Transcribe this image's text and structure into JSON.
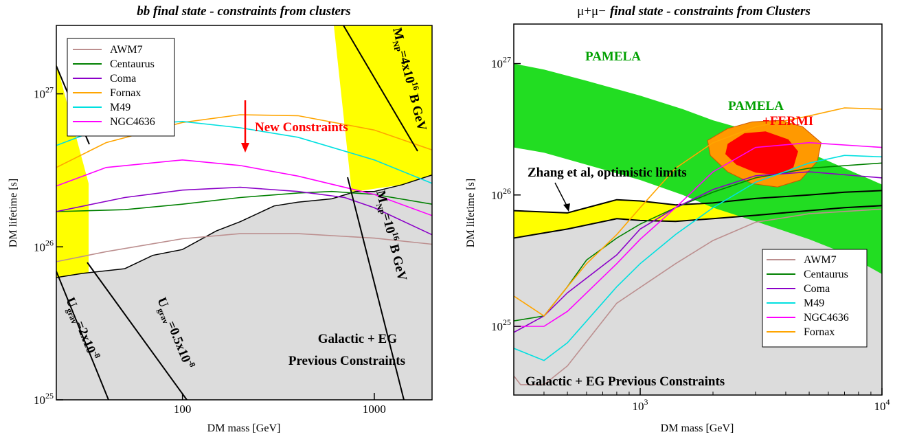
{
  "chart_data": [
    {
      "type": "line",
      "title": "bb final state - constraints from clusters",
      "xlabel": "DM mass [GeV]",
      "ylabel": "DM lifetime [s]",
      "xscale": "log",
      "yscale": "log",
      "xlim": [
        22,
        2000
      ],
      "ylim": [
        1e+25,
        2.8e+27
      ],
      "x_ticks": [
        {
          "v": 100,
          "label": "100"
        },
        {
          "v": 1000,
          "label": "1000"
        }
      ],
      "y_ticks": [
        {
          "v": 1e+25,
          "base": "10",
          "exp": "25"
        },
        {
          "v": 1e+26,
          "base": "10",
          "exp": "26"
        },
        {
          "v": 1e+27,
          "base": "10",
          "exp": "27"
        }
      ],
      "legend": "top-left",
      "grid": false,
      "series": [
        {
          "name": "AWM7",
          "color": "#bc8f8f",
          "x": [
            22,
            40,
            100,
            200,
            400,
            1000,
            2000
          ],
          "y": [
            8e+25,
            9.3e+25,
            1.13e+26,
            1.22e+26,
            1.22e+26,
            1.14e+26,
            1.04e+26
          ]
        },
        {
          "name": "Centaurus",
          "color": "#008000",
          "x": [
            22,
            50,
            100,
            200,
            400,
            600,
            1000,
            2000
          ],
          "y": [
            1.7e+26,
            1.75e+26,
            1.9e+26,
            2.1e+26,
            2.25e+26,
            2.3e+26,
            2.2e+26,
            1.9e+26
          ]
        },
        {
          "name": "Coma",
          "color": "#8b00c8",
          "x": [
            22,
            50,
            100,
            200,
            400,
            700,
            1000,
            2000
          ],
          "y": [
            1.7e+26,
            2.1e+26,
            2.35e+26,
            2.45e+26,
            2.3e+26,
            2.1e+26,
            1.8e+26,
            1.2e+26
          ]
        },
        {
          "name": "Fornax",
          "color": "#ffa500",
          "x": [
            22,
            40,
            100,
            200,
            400,
            1000,
            2000
          ],
          "y": [
            3.3e+26,
            4.8e+26,
            6.5e+26,
            7.3e+26,
            7.2e+26,
            5.8e+26,
            4.3e+26
          ]
        },
        {
          "name": "M49",
          "color": "#00e0e0",
          "x": [
            22,
            40,
            100,
            200,
            400,
            1000,
            2000
          ],
          "y": [
            4.6e+26,
            6.1e+26,
            6.6e+26,
            6e+26,
            5.2e+26,
            3.7e+26,
            2.6e+26
          ]
        },
        {
          "name": "NGC4636",
          "color": "#ff00ff",
          "x": [
            22,
            40,
            100,
            200,
            400,
            1000,
            2000
          ],
          "y": [
            2.5e+26,
            3.3e+26,
            3.7e+26,
            3.4e+26,
            2.9e+26,
            2.2e+26,
            1.6e+26
          ]
        }
      ],
      "previous_constraints_boundary": {
        "x": [
          22,
          30,
          50,
          70,
          100,
          150,
          200,
          300,
          400,
          600,
          800,
          1000,
          1400,
          2000
        ],
        "y": [
          6.3e+25,
          6.7e+25,
          7.2e+25,
          8.8e+25,
          9.6e+25,
          1.27e+26,
          1.46e+26,
          1.85e+26,
          1.96e+26,
          2.06e+26,
          2.3e+26,
          2.3e+26,
          2.55e+26,
          2.95e+26
        ]
      },
      "annotations": {
        "arrow_text": "New Constraints",
        "region_label_1": "Galactic + EG",
        "region_label_2": "Previous Constraints",
        "band_label_1": "M",
        "band_label_1_sub": "NP",
        "band_label_1_rest": "=4x10",
        "band_label_1_sup": "16",
        "band_label_1_end": " B GeV",
        "band_label_2": "M",
        "band_label_2_sub": "NP",
        "band_label_2_rest": "=10",
        "band_label_2_sup": "16",
        "band_label_2_end": " B GeV",
        "ugrav_label_1": "U",
        "ugrav_label_1_sub": "grav",
        "ugrav_label_1_rest": "=2x10",
        "ugrav_label_1_sup": "-8",
        "ugrav_label_2": "U",
        "ugrav_label_2_sub": "grav",
        "ugrav_label_2_rest": "=0.5x10",
        "ugrav_label_2_sup": "-8"
      }
    },
    {
      "type": "line",
      "title_prefix": "μ+μ−",
      "title": "final state - constraints from Clusters",
      "xlabel": "DM mass [GeV]",
      "ylabel": "DM lifetime [s]",
      "xscale": "log",
      "yscale": "log",
      "xlim": [
        300,
        10000
      ],
      "ylim": [
        3e+24,
        2e+27
      ],
      "x_ticks": [
        {
          "v": 1000,
          "base": "10",
          "exp": "3"
        },
        {
          "v": 10000,
          "base": "10",
          "exp": "4"
        }
      ],
      "y_ticks": [
        {
          "v": 1e+25,
          "base": "10",
          "exp": "25"
        },
        {
          "v": 1e+26,
          "base": "10",
          "exp": "26"
        },
        {
          "v": 1e+27,
          "base": "10",
          "exp": "27"
        }
      ],
      "legend": "bottom-right",
      "grid": false,
      "series": [
        {
          "name": "AWM7",
          "color": "#bc8f8f",
          "x": [
            300,
            320,
            400,
            500,
            800,
            1400,
            2000,
            3000,
            5000,
            10000
          ],
          "y": [
            4.2e+24,
            3.6e+24,
            3.6e+24,
            5e+24,
            1.5e+25,
            3e+25,
            4.5e+25,
            6.2e+25,
            7.2e+25,
            7.8e+25
          ]
        },
        {
          "name": "Centaurus",
          "color": "#008000",
          "x": [
            300,
            400,
            500,
            600,
            800,
            1000,
            1400,
            2000,
            3000,
            5000,
            10000
          ],
          "y": [
            1.1e+25,
            1.2e+25,
            2e+25,
            3.2e+25,
            4.7e+25,
            6e+25,
            8e+25,
            1.05e+26,
            1.35e+26,
            1.6e+26,
            1.75e+26
          ]
        },
        {
          "name": "Coma",
          "color": "#8b00c8",
          "x": [
            300,
            400,
            500,
            800,
            1000,
            1400,
            2000,
            3000,
            5000,
            10000
          ],
          "y": [
            9e+24,
            1.2e+25,
            1.8e+25,
            3.5e+25,
            5.5e+25,
            8e+25,
            1.1e+26,
            1.4e+26,
            1.5e+26,
            1.35e+26
          ]
        },
        {
          "name": "M49",
          "color": "#00e0e0",
          "x": [
            300,
            400,
            500,
            800,
            1000,
            1400,
            2000,
            3000,
            5000,
            7000,
            10000
          ],
          "y": [
            6.8e+24,
            5.5e+24,
            7.5e+24,
            2e+25,
            3e+25,
            5e+25,
            8e+25,
            1.25e+26,
            1.75e+26,
            2e+26,
            1.95e+26
          ]
        },
        {
          "name": "NGC4636",
          "color": "#ff00ff",
          "x": [
            300,
            400,
            500,
            800,
            1000,
            1400,
            2000,
            3000,
            5000,
            10000
          ],
          "y": [
            1e+25,
            1e+25,
            1.3e+25,
            3e+25,
            4.6e+25,
            8e+25,
            1.5e+26,
            2.3e+26,
            2.5e+26,
            2.3e+26
          ]
        },
        {
          "name": "Fornax",
          "color": "#ffa500",
          "x": [
            300,
            400,
            500,
            600,
            800,
            1000,
            1400,
            2000,
            3000,
            5000,
            7000,
            10000
          ],
          "y": [
            1.7e+25,
            1.2e+25,
            2e+25,
            3e+25,
            5e+25,
            8e+25,
            1.6e+26,
            2.5e+26,
            3.3e+26,
            4e+26,
            4.6e+26,
            4.5e+26
          ]
        }
      ],
      "previous_constraints_boundary": {
        "x": [
          300,
          500,
          800,
          1000,
          1400,
          2000,
          3000,
          5000,
          7000,
          10000
        ],
        "y": [
          4.7e+25,
          5.5e+25,
          6.6e+25,
          6.4e+25,
          6.3e+25,
          6.6e+25,
          7e+25,
          7.6e+25,
          8e+25,
          8.3e+25
        ]
      },
      "optimistic_upper_boundary": {
        "x": [
          300,
          500,
          800,
          1000,
          1400,
          2000,
          3000,
          5000,
          7000,
          10000
        ],
        "y": [
          7.6e+25,
          7.3e+25,
          9.2e+25,
          9e+25,
          8.4e+25,
          8.7e+25,
          9.4e+25,
          1e+26,
          1.05e+26,
          1.08e+26
        ]
      },
      "pamela_band_upper": {
        "x": [
          300,
          400,
          600,
          1000,
          1500,
          2000,
          3000,
          5000,
          7000,
          10000
        ],
        "y": [
          1e+27,
          9e+26,
          7.4e+26,
          5.7e+26,
          4.5e+26,
          3.7e+26,
          3e+26,
          2.1e+26,
          1.6e+26,
          1.2e+26
        ]
      },
      "pamela_band_lower": {
        "x": [
          300,
          400,
          600,
          1000,
          1500,
          2000,
          3000,
          5000,
          7000,
          10000
        ],
        "y": [
          2.3e+26,
          2.1e+26,
          1.7e+26,
          1.3e+26,
          1e+26,
          8e+25,
          6.3e+25,
          4.6e+25,
          3.6e+25,
          2.5e+25
        ]
      },
      "fermi_outer": {
        "x": [
          1900,
          2300,
          2900,
          3800,
          4700,
          5600,
          5400,
          4600,
          3700,
          2900,
          2300,
          1950
        ],
        "y": [
          2.6e+26,
          3.2e+26,
          3.6e+26,
          3.7e+26,
          3.3e+26,
          2.5e+26,
          1.8e+26,
          1.3e+26,
          1.15e+26,
          1.22e+26,
          1.5e+26,
          2e+26
        ]
      },
      "fermi_inner": {
        "x": [
          2300,
          2700,
          3300,
          4100,
          4500,
          4300,
          3700,
          3000,
          2500,
          2250
        ],
        "y": [
          2.45e+26,
          2.95e+26,
          3.05e+26,
          2.65e+26,
          2.15e+26,
          1.62e+26,
          1.42e+26,
          1.48e+26,
          1.7e+26,
          2.05e+26
        ]
      },
      "annotations": {
        "pamela_label": "PAMELA",
        "pamela_fermi_label_1": "PAMELA",
        "pamela_fermi_label_2": "+FERMI",
        "zhang_label": "Zhang et al, optimistic limits",
        "region_label": "Galactic + EG Previous Constraints"
      }
    }
  ]
}
